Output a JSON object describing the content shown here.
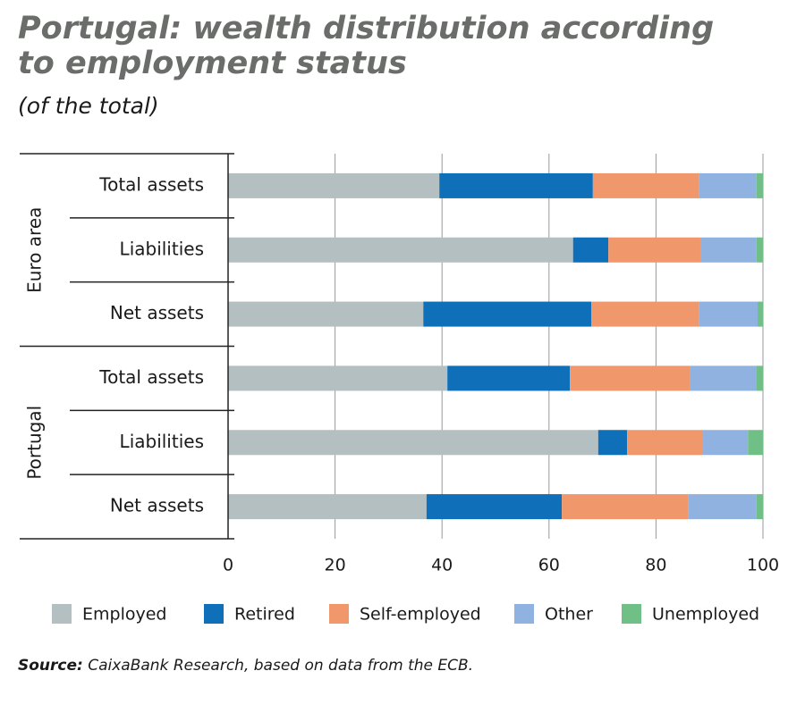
{
  "chart_data": {
    "type": "stacked-barh",
    "title": "Portugal: wealth distribution according to employment status",
    "subtitle": "(of the total)",
    "groups": [
      "Euro area",
      "Portugal"
    ],
    "categories": [
      "Total assets",
      "Liabilities",
      "Net assets",
      "Total assets",
      "Liabilities",
      "Net assets"
    ],
    "series": [
      {
        "name": "Employed",
        "color": "#b4bfc2",
        "values": [
          39.5,
          64.5,
          36.5,
          41.0,
          69.2,
          37.1
        ]
      },
      {
        "name": "Retired",
        "color": "#0f6fb8",
        "values": [
          28.7,
          6.6,
          31.4,
          22.9,
          5.4,
          25.3
        ]
      },
      {
        "name": "Self-employed",
        "color": "#f0976b",
        "values": [
          19.9,
          17.2,
          20.2,
          22.4,
          14.2,
          23.7
        ]
      },
      {
        "name": "Other",
        "color": "#8fb2e0",
        "values": [
          10.7,
          10.5,
          10.9,
          12.4,
          8.4,
          12.7
        ]
      },
      {
        "name": "Unemployed",
        "color": "#6fbf87",
        "values": [
          1.2,
          1.2,
          1.0,
          1.3,
          2.8,
          1.2
        ]
      }
    ],
    "xlim": [
      0,
      100
    ],
    "xticks": [
      0,
      20,
      40,
      60,
      80,
      100
    ],
    "grid": true,
    "source_label": "Source:",
    "source": "CaixaBank Research, based on data from the ECB."
  }
}
